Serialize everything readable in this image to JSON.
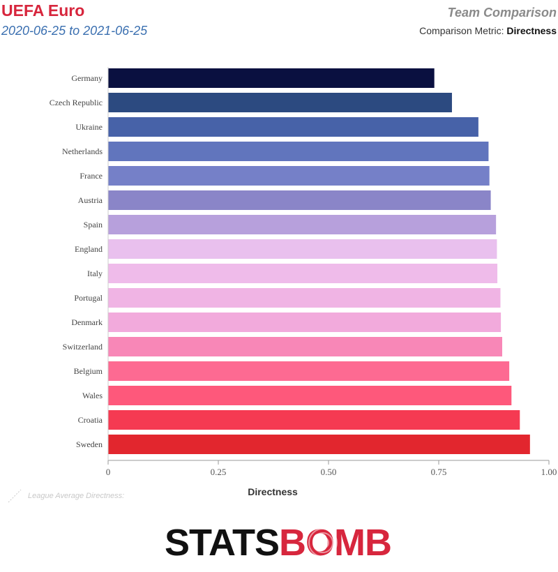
{
  "header": {
    "title": "UEFA Euro",
    "dates": "2020-06-25 to 2021-06-25",
    "view_title": "Team Comparison",
    "metric_label": "Comparison Metric:",
    "metric_value": "Directness"
  },
  "footer": {
    "league_note": "League Average Directness:",
    "brand_left": "STATS",
    "brand_right": "BOMB",
    "brand_left_color": "#111111",
    "brand_right_color": "#d7263d"
  },
  "chart_data": {
    "type": "bar",
    "orientation": "horizontal",
    "xlabel": "Directness",
    "xlim": [
      0,
      1
    ],
    "xticks": [
      "0",
      "0.25",
      "0.50",
      "0.75",
      "1.00"
    ],
    "xtick_values": [
      0,
      0.25,
      0.5,
      0.75,
      1.0
    ],
    "grid": false,
    "categories": [
      "Germany",
      "Czech Republic",
      "Ukraine",
      "Netherlands",
      "France",
      "Austria",
      "Spain",
      "England",
      "Italy",
      "Portugal",
      "Denmark",
      "Switzerland",
      "Belgium",
      "Wales",
      "Croatia",
      "Sweden"
    ],
    "values": [
      0.74,
      0.78,
      0.84,
      0.863,
      0.865,
      0.868,
      0.88,
      0.882,
      0.883,
      0.89,
      0.891,
      0.894,
      0.91,
      0.915,
      0.934,
      0.957
    ],
    "colors": [
      "#0a1040",
      "#2c4a80",
      "#4762a8",
      "#6175bd",
      "#7580c8",
      "#8a85c8",
      "#b7a0dc",
      "#e9c0ee",
      "#efbbea",
      "#f0b4e4",
      "#f2aadc",
      "#f887b7",
      "#fd6a92",
      "#fe587b",
      "#f53a52",
      "#e2262e"
    ]
  }
}
